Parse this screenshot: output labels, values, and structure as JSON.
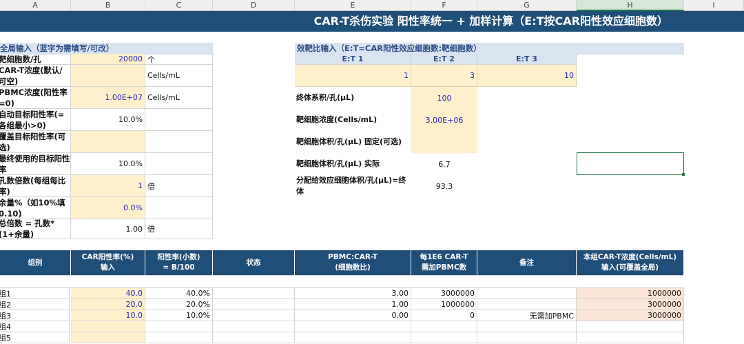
{
  "columns": [
    "A",
    "B",
    "C",
    "D",
    "E",
    "F",
    "G",
    "H",
    "I"
  ],
  "selected_column": "H",
  "title": "CAR-T杀伤实验 阳性率统一 + 加样计算（E:T按CAR阳性效应细胞数）",
  "global": {
    "header": "全局输入（蓝字为需填写/可改）",
    "rows": [
      {
        "label": "靶细胞数/孔",
        "value": "20000",
        "unit": "个",
        "input": true
      },
      {
        "label": "CAR-T浓度(默认/可空)",
        "value": "",
        "unit": "Cells/mL",
        "input": true
      },
      {
        "label": "PBMC浓度(阳性率=0)",
        "value": "1.00E+07",
        "unit": "Cells/mL",
        "input": true
      },
      {
        "label": "自动目标阳性率(=各组最小>0)",
        "value": "10.0%",
        "unit": "",
        "input": false
      },
      {
        "label": "覆盖目标阳性率(可选)",
        "value": "",
        "unit": "",
        "input": true
      },
      {
        "label": "最终使用的目标阳性率",
        "value": "10.0%",
        "unit": "",
        "input": false
      },
      {
        "label": "孔数倍数(每组每比率)",
        "value": "1",
        "unit": "倍",
        "input": true
      },
      {
        "label": "余量%（如10%填0.10)",
        "value": "0.0%",
        "unit": "",
        "input": true
      },
      {
        "label": "总倍数 = 孔数*(1+余量)",
        "value": "1.00",
        "unit": "倍",
        "input": false
      }
    ]
  },
  "et": {
    "header": "效靶比输入（E:T=CAR阳性效应细胞数:靶细胞数）",
    "labels": [
      "E:T 1",
      "E:T 2",
      "E:T 3"
    ],
    "values": [
      "1",
      "3",
      "10"
    ],
    "params": [
      {
        "label": "终体系积/孔(μL)",
        "value": "100",
        "input": true
      },
      {
        "label": "靶细胞浓度(Cells/mL)",
        "value": "3.00E+06",
        "input": true
      },
      {
        "label": "靶细胞体积/孔(μL) 固定(可选)",
        "value": "",
        "input": true
      },
      {
        "label": "靶细胞体积/孔(μL) 实际",
        "value": "6.7",
        "input": false
      },
      {
        "label": "分配给效应细胞体积/孔(μL)=终体",
        "value": "93.3",
        "input": false
      }
    ]
  },
  "groups": {
    "headers": [
      "组别",
      "CAR阳性率(%)\n输入",
      "阳性率(小数)\n= B/100",
      "状态",
      "PBMC:CAR-T\n(细胞数比)",
      "每1E6 CAR-T\n需加PBMC数",
      "备注",
      "本组CAR-T浓度(Cells/mL)\n输入(可覆盖全局)"
    ],
    "rows": [
      [
        "组1",
        "40.0",
        "40.0%",
        "",
        "3.00",
        "3000000",
        "",
        "1000000"
      ],
      [
        "组2",
        "20.0",
        "20.0%",
        "",
        "1.00",
        "1000000",
        "",
        "3000000"
      ],
      [
        "组3",
        "10.0",
        "10.0%",
        "",
        "0.00",
        "0",
        "无需加PBMC",
        "3000000"
      ],
      [
        "组4",
        "",
        "",
        "",
        "",
        "",
        "",
        ""
      ],
      [
        "组5",
        "",
        "",
        "",
        "",
        "",
        "",
        ""
      ]
    ]
  },
  "colors": {
    "header_blue": "#1f4e79",
    "input_fill": "#fff0cc",
    "section_fill": "#dae3f0",
    "override_fill": "#fbe5d6",
    "input_text": "#2222c0"
  }
}
